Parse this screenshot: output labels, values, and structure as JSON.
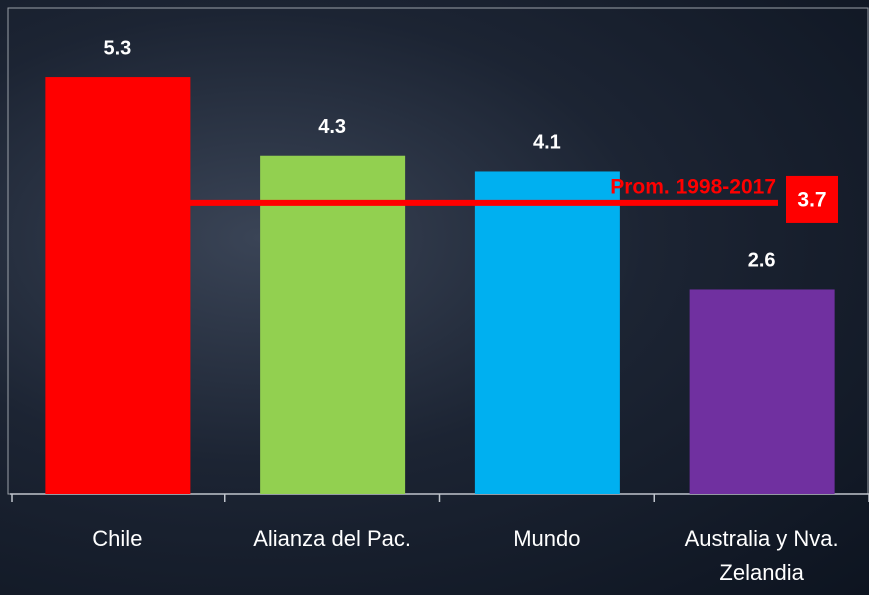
{
  "chart_data": {
    "type": "bar",
    "categories": [
      "Chile",
      "Alianza del Pac.",
      "Mundo",
      "Australia y Nva. Zelandia"
    ],
    "values": [
      5.3,
      4.3,
      4.1,
      2.6
    ],
    "colors": [
      "#ff0000",
      "#92d050",
      "#00b0f0",
      "#7030a0"
    ],
    "ylim": [
      0,
      6
    ],
    "reference_line": {
      "value": 3.7,
      "label": "Prom. 1998-2017",
      "color": "#ff0000"
    }
  }
}
